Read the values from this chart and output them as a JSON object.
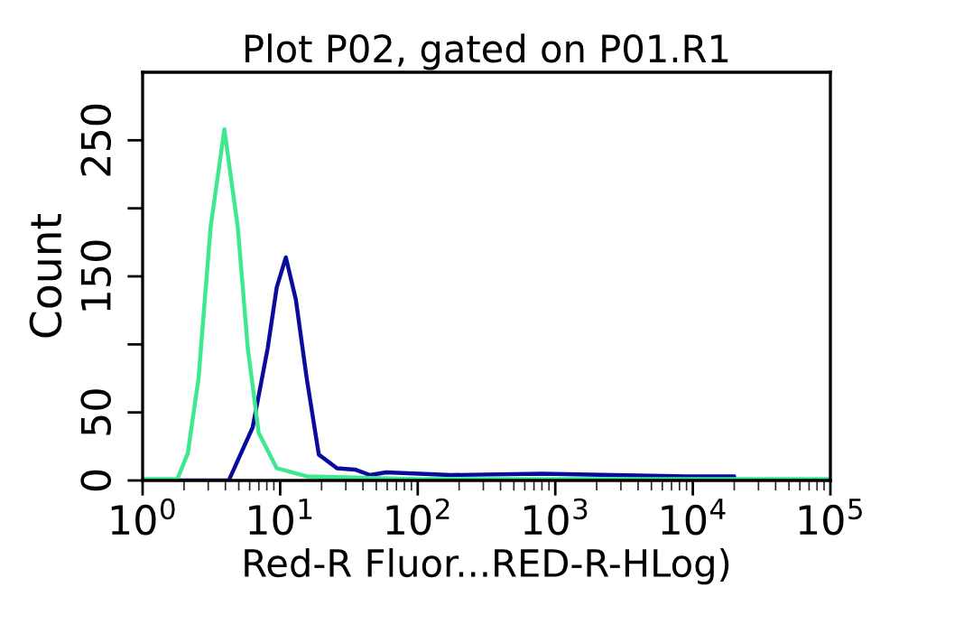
{
  "chart_data": {
    "type": "line",
    "title": "Plot P02, gated on P01.R1",
    "xlabel": "Red-R Fluor...RED-R-HLog)",
    "ylabel": "Count",
    "log": "x",
    "xlim": [
      1,
      100000
    ],
    "xticks": [
      {
        "value": 1,
        "label": "10$^{0}$"
      },
      {
        "value": 10,
        "label": "10$^{1}$"
      },
      {
        "value": 100,
        "label": "10$^{2}$"
      },
      {
        "value": 1000,
        "label": "10$^{3}$"
      },
      {
        "value": 10000,
        "label": "10$^{4}$"
      },
      {
        "value": 100000,
        "label": "10$^{5}$"
      }
    ],
    "ylim": [
      0,
      300
    ],
    "yticks": [
      0,
      50,
      {
        "value": 100,
        "label": null
      },
      150,
      {
        "value": 200,
        "label": null
      },
      250
    ],
    "grid": false,
    "marker": "none",
    "line_style": "solid",
    "series": [
      {
        "color": "#0a0a9c",
        "x": [
          1,
          4.23,
          6.31,
          8.11,
          9.44,
          11.0,
          13.0,
          15.6,
          19.1,
          25.9,
          35,
          45,
          59,
          175,
          800,
          2650,
          8900,
          20000
        ],
        "values": [
          0,
          0,
          39,
          97,
          142,
          164,
          133,
          75,
          19,
          9,
          8,
          4,
          6,
          4,
          5,
          4,
          3,
          3
        ]
      },
      {
        "color": "#3de88f",
        "x": [
          1,
          1.79,
          2.13,
          2.55,
          3.12,
          3.93,
          4.92,
          5.82,
          6.98,
          9.44,
          15.6,
          100,
          1000,
          10000,
          100000
        ],
        "values": [
          1,
          1,
          20,
          75,
          186,
          258,
          186,
          97,
          35,
          9,
          3,
          1,
          1,
          1,
          1
        ]
      }
    ]
  }
}
